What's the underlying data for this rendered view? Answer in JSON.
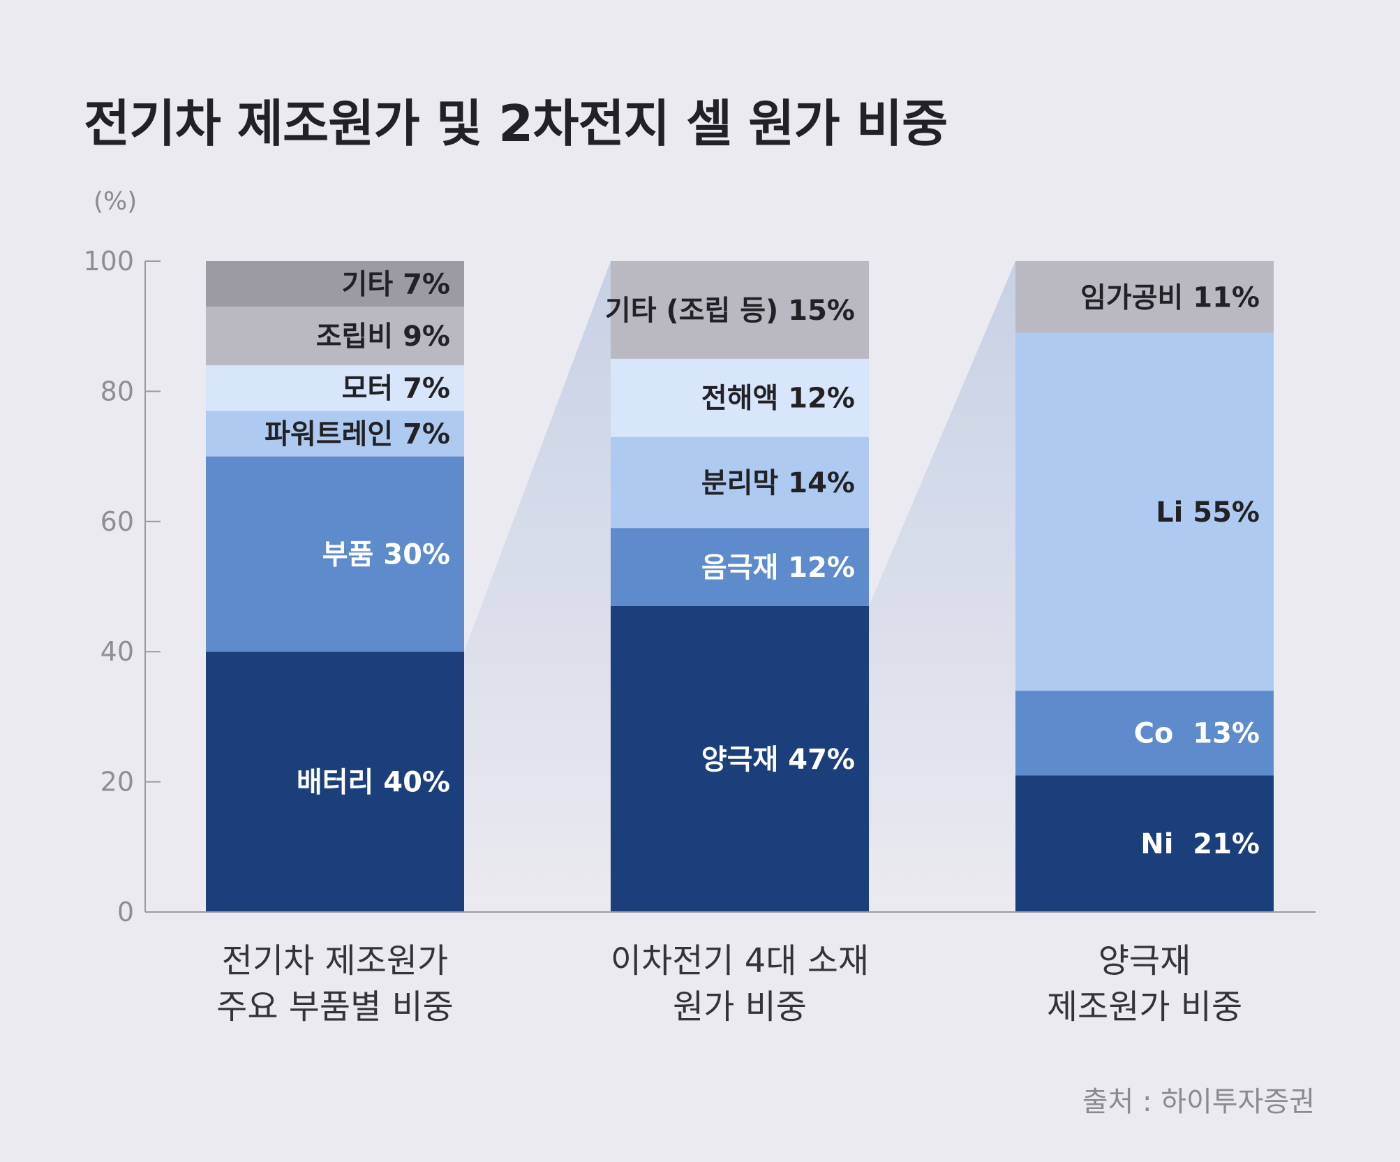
{
  "title": "전기차 제조원가 및 2차전지 셀 원가 비중",
  "unit_label": "(%)",
  "source": "출처 : 하이투자증권",
  "colors": {
    "background": "#ebeaf0",
    "axis": "#9a9aa0",
    "connector": "#c9d3e6"
  },
  "chart_data": {
    "type": "bar",
    "stacked": true,
    "ylim": [
      0,
      100
    ],
    "yticks": [
      0,
      20,
      40,
      60,
      80,
      100
    ],
    "ylabel": "(%)",
    "grid": false,
    "legend": "none",
    "categories": [
      [
        "전기차 제조원가",
        "주요 부품별 비중"
      ],
      [
        "이차전기 4대 소재",
        "원가 비중"
      ],
      [
        "양극재",
        "제조원가 비중"
      ]
    ],
    "bars": [
      {
        "segments": [
          {
            "name": "배터리",
            "value": 40,
            "label": "배터리 40%",
            "color": "#1a3f7a",
            "text_color": "#ffffff"
          },
          {
            "name": "부품",
            "value": 30,
            "label": "부품 30%",
            "color": "#5e8bcb",
            "text_color": "#ffffff"
          },
          {
            "name": "파워트레인",
            "value": 7,
            "label": "파워트레인 7%",
            "color": "#aecaf0",
            "text_color": "#222226"
          },
          {
            "name": "모터",
            "value": 7,
            "label": "모터 7%",
            "color": "#d8e6fb",
            "text_color": "#222226"
          },
          {
            "name": "조립비",
            "value": 9,
            "label": "조립비 9%",
            "color": "#bab9c2",
            "text_color": "#222226"
          },
          {
            "name": "기타",
            "value": 7,
            "label": "기타 7%",
            "color": "#9c9ba4",
            "text_color": "#222226"
          }
        ]
      },
      {
        "segments": [
          {
            "name": "양극재",
            "value": 47,
            "label": "양극재 47%",
            "color": "#1a3f7a",
            "text_color": "#ffffff"
          },
          {
            "name": "음극재",
            "value": 12,
            "label": "음극재 12%",
            "color": "#5e8bcb",
            "text_color": "#ffffff"
          },
          {
            "name": "분리막",
            "value": 14,
            "label": "분리막 14%",
            "color": "#aecaf0",
            "text_color": "#222226"
          },
          {
            "name": "전해액",
            "value": 12,
            "label": "전해액 12%",
            "color": "#d8e6fb",
            "text_color": "#222226"
          },
          {
            "name": "기타 (조립 등)",
            "value": 15,
            "label": "기타 (조립 등) 15%",
            "color": "#bab9c2",
            "text_color": "#222226"
          }
        ]
      },
      {
        "segments": [
          {
            "name": "Ni",
            "value": 21,
            "label": "Ni  21%",
            "color": "#1a3f7a",
            "text_color": "#ffffff"
          },
          {
            "name": "Co",
            "value": 13,
            "label": "Co  13%",
            "color": "#5e8bcb",
            "text_color": "#ffffff"
          },
          {
            "name": "Li",
            "value": 55,
            "label": "Li 55%",
            "color": "#aecaf0",
            "text_color": "#222226"
          },
          {
            "name": "임가공비",
            "value": 11,
            "label": "임가공비 11%",
            "color": "#bab9c2",
            "text_color": "#222226"
          }
        ]
      }
    ]
  }
}
